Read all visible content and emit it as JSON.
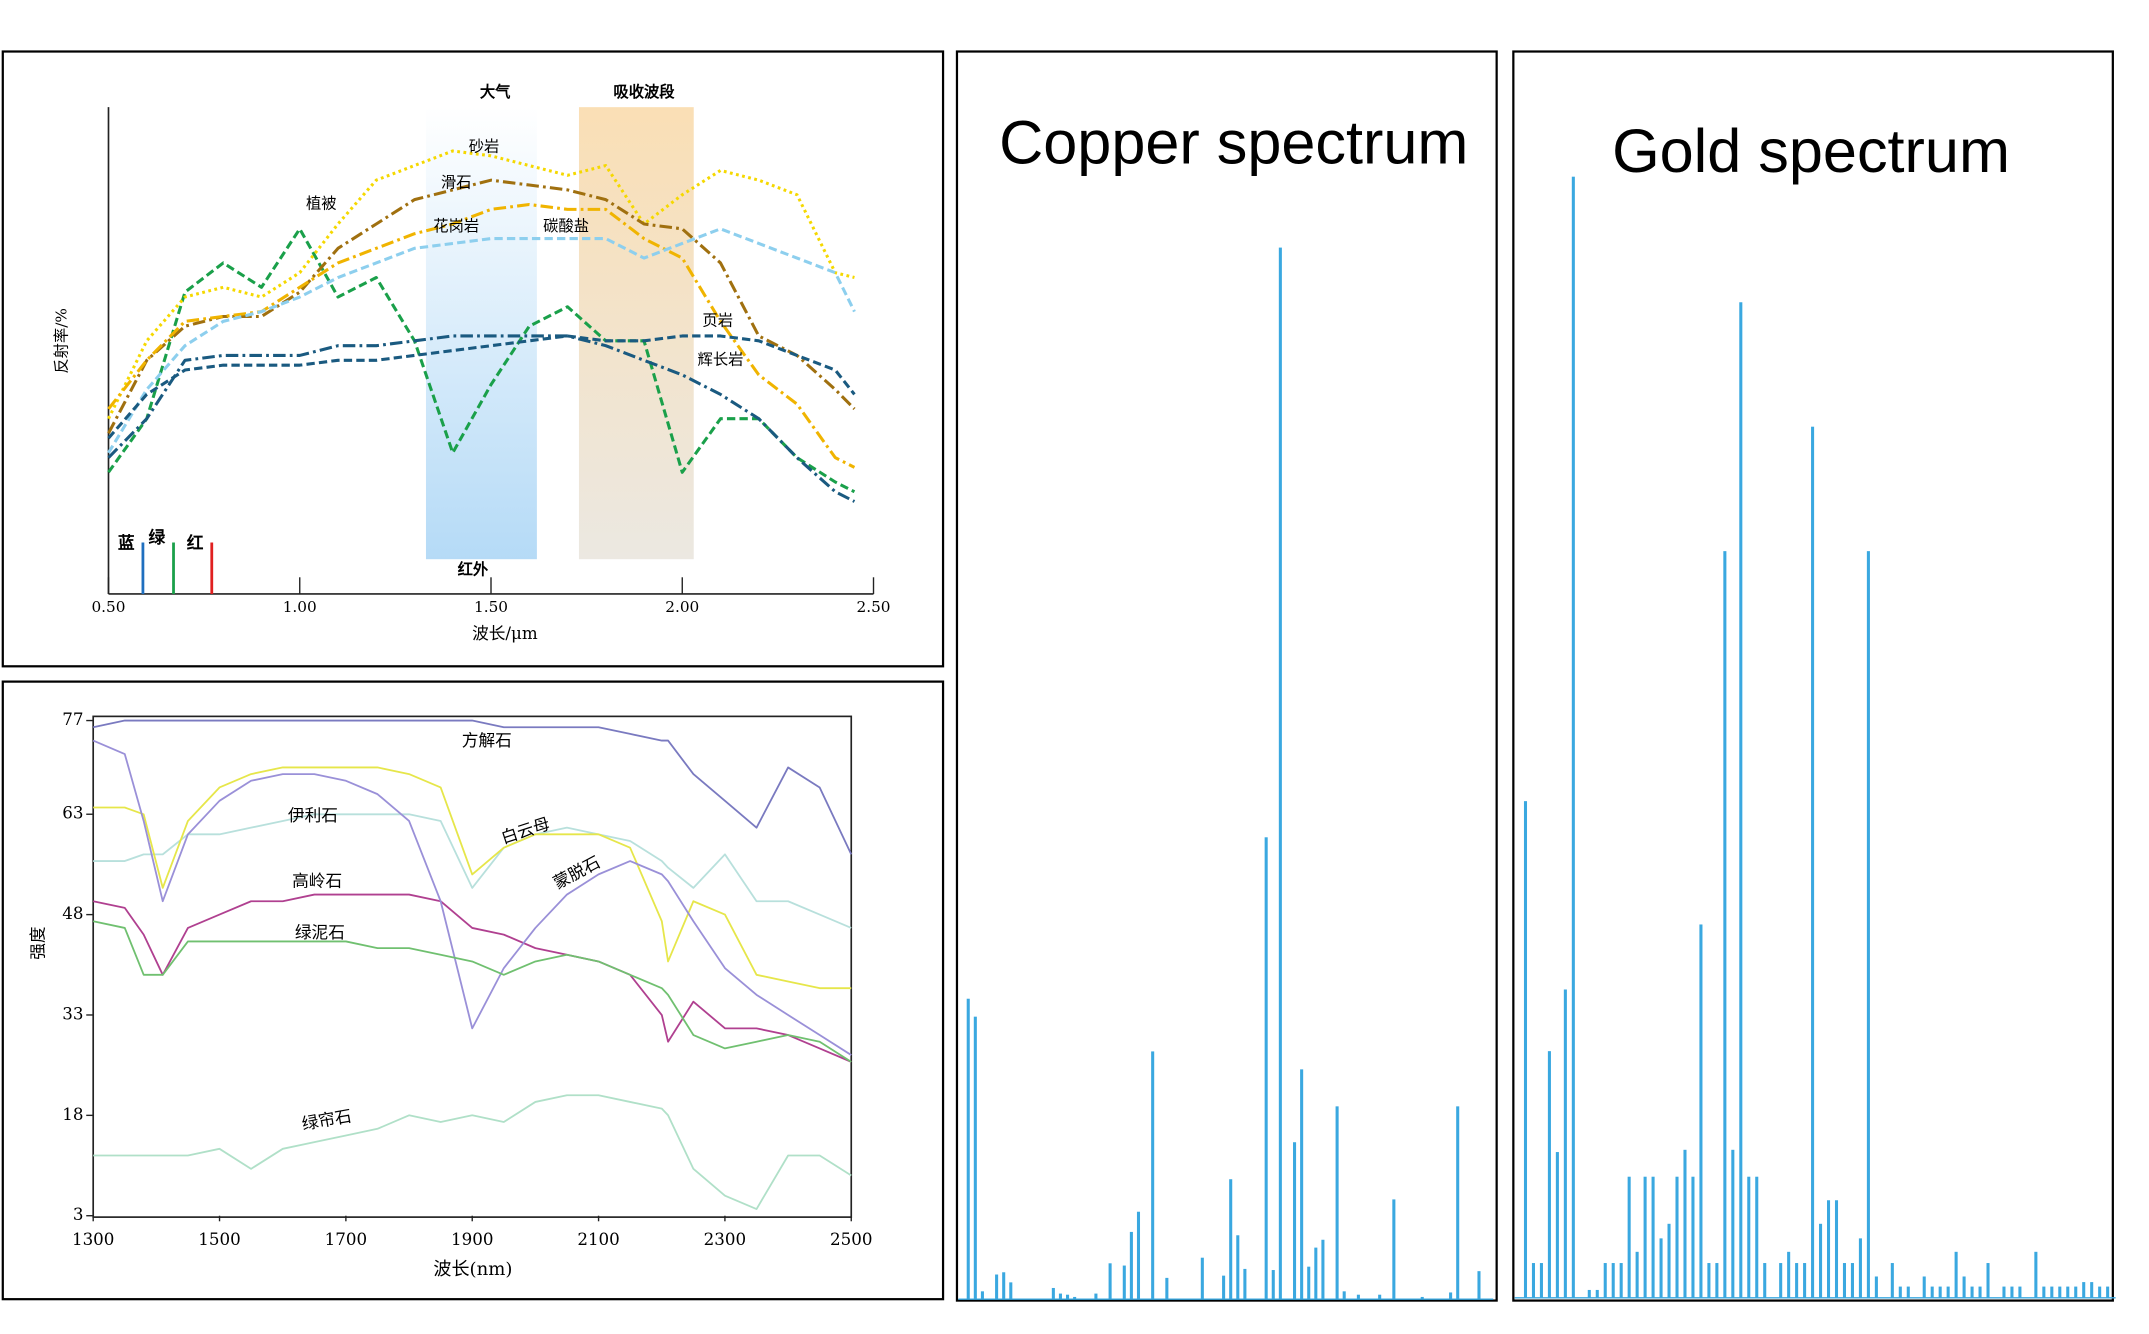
{
  "chart_data": [
    {
      "type": "line",
      "xlabel": "波长/μm",
      "ylabel": "反射率/%",
      "x": [
        0.5,
        0.6,
        0.7,
        0.8,
        0.9,
        1.0,
        1.1,
        1.2,
        1.3,
        1.4,
        1.5,
        1.6,
        1.7,
        1.8,
        1.9,
        2.0,
        2.1,
        2.2,
        2.3,
        2.4,
        2.45
      ],
      "xlim": [
        0.5,
        2.5
      ],
      "ylim": [
        0,
        100
      ],
      "xticks": [
        {
          "value": 0.5,
          "label": "0.50"
        },
        {
          "value": 1.0,
          "label": "1.00"
        },
        {
          "value": 1.5,
          "label": "1.50"
        },
        {
          "value": 2.0,
          "label": "2.00"
        },
        {
          "value": 2.5,
          "label": "2.50"
        }
      ],
      "bands": [
        [
          1.33,
          1.62
        ],
        [
          1.73,
          2.03
        ]
      ],
      "band_colors": [
        "#bfe0f7",
        "#f7dcae"
      ],
      "annotations": [
        "大气",
        "吸收波段",
        "红外"
      ],
      "markers": [
        {
          "label": "蓝",
          "x": 0.59,
          "color": "#1f6fbf"
        },
        {
          "label": "绿",
          "x": 0.67,
          "color": "#1aa04a"
        },
        {
          "label": "红",
          "x": 0.77,
          "color": "#e02020"
        }
      ],
      "series": [
        {
          "name": "植被",
          "color": "#1aa04a",
          "dash": "dashed",
          "values": [
            25,
            36,
            62,
            68,
            63,
            75,
            61,
            65,
            52,
            29,
            43,
            55,
            59,
            52,
            52,
            25,
            36,
            36,
            28,
            23,
            21
          ]
        },
        {
          "name": "砂岩",
          "color": "#f5d800",
          "dash": "dotted",
          "values": [
            36,
            52,
            61,
            63,
            61,
            66,
            76,
            85,
            88,
            91,
            90,
            88,
            86,
            88,
            76,
            82,
            87,
            85,
            82,
            66,
            65
          ]
        },
        {
          "name": "滑石",
          "color": "#a0700f",
          "dash": "dashdot",
          "values": [
            33,
            48,
            55,
            57,
            57,
            62,
            71,
            76,
            81,
            83,
            85,
            84,
            83,
            81,
            76,
            75,
            68,
            53,
            49,
            42,
            38
          ]
        },
        {
          "name": "花岗岩",
          "color": "#f0b400",
          "dash": "dashdot",
          "values": [
            38,
            48,
            56,
            57,
            58,
            63,
            68,
            71,
            74,
            76,
            79,
            80,
            79,
            79,
            73,
            69,
            56,
            45,
            39,
            28,
            26
          ]
        },
        {
          "name": "碳酸盐",
          "color": "#8dcfee",
          "dash": "dashed",
          "values": [
            29,
            42,
            51,
            56,
            58,
            61,
            65,
            68,
            71,
            72,
            73,
            73,
            73,
            73,
            69,
            72,
            75,
            72,
            69,
            66,
            58
          ]
        },
        {
          "name": "页岩",
          "color": "#1a5a80",
          "dash": "dashed",
          "values": [
            32,
            41,
            46,
            47,
            47,
            47,
            48,
            48,
            49,
            50,
            51,
            52,
            53,
            52,
            52,
            53,
            53,
            52,
            49,
            46,
            41
          ]
        },
        {
          "name": "辉长岩",
          "color": "#1a5a80",
          "dash": "dashdot",
          "values": [
            28,
            36,
            48,
            49,
            49,
            49,
            51,
            51,
            52,
            53,
            53,
            53,
            53,
            51,
            48,
            45,
            41,
            36,
            28,
            21,
            19
          ]
        }
      ]
    },
    {
      "type": "line",
      "xlabel": "波长(nm)",
      "ylabel": "强度",
      "x": [
        1300,
        1350,
        1380,
        1410,
        1450,
        1500,
        1550,
        1600,
        1650,
        1700,
        1750,
        1800,
        1850,
        1900,
        1950,
        2000,
        2050,
        2100,
        2150,
        2200,
        2210,
        2250,
        2300,
        2350,
        2400,
        2450,
        2500
      ],
      "xlim": [
        1300,
        2500
      ],
      "ylim": [
        3,
        77
      ],
      "xticks": [
        1300,
        1500,
        1700,
        1900,
        2100,
        2300,
        2500
      ],
      "yticks": [
        3,
        18,
        33,
        48,
        63,
        77
      ],
      "series": [
        {
          "name": "方解石",
          "color": "#7a7ac0",
          "dash": "solid",
          "values": [
            76,
            77,
            77,
            77,
            77,
            77,
            77,
            77,
            77,
            77,
            77,
            77,
            77,
            77,
            76,
            76,
            76,
            76,
            75,
            74,
            74,
            69,
            65,
            61,
            70,
            67,
            57
          ]
        },
        {
          "name": "伊利石",
          "color": "#b8e0dc",
          "dash": "solid",
          "values": [
            56,
            56,
            57,
            57,
            60,
            60,
            61,
            62,
            63,
            63,
            63,
            63,
            62,
            52,
            58,
            60,
            61,
            60,
            59,
            56,
            55,
            52,
            57,
            50,
            50,
            48,
            46
          ]
        },
        {
          "name": "白云母",
          "color": "#e6e64a",
          "dash": "solid",
          "values": [
            64,
            64,
            63,
            52,
            62,
            67,
            69,
            70,
            70,
            70,
            70,
            69,
            67,
            54,
            58,
            60,
            60,
            60,
            58,
            47,
            41,
            50,
            48,
            39,
            38,
            37,
            37
          ]
        },
        {
          "name": "高岭石",
          "color": "#b04090",
          "dash": "solid",
          "values": [
            50,
            49,
            45,
            39,
            46,
            48,
            50,
            50,
            51,
            51,
            51,
            51,
            50,
            46,
            45,
            43,
            42,
            41,
            39,
            33,
            29,
            35,
            31,
            31,
            30,
            28,
            26
          ]
        },
        {
          "name": "蒙脱石",
          "color": "#9a90d8",
          "dash": "solid",
          "values": [
            74,
            72,
            62,
            50,
            60,
            65,
            68,
            69,
            69,
            68,
            66,
            62,
            50,
            31,
            40,
            46,
            51,
            54,
            56,
            54,
            53,
            47,
            40,
            36,
            33,
            30,
            27
          ]
        },
        {
          "name": "绿泥石",
          "color": "#70c070",
          "dash": "solid",
          "values": [
            47,
            46,
            39,
            39,
            44,
            44,
            44,
            44,
            44,
            44,
            43,
            43,
            42,
            41,
            39,
            41,
            42,
            41,
            39,
            37,
            36,
            30,
            28,
            29,
            30,
            29,
            26
          ]
        },
        {
          "name": "绿帘石",
          "color": "#b0e0c8",
          "dash": "solid",
          "values": [
            12,
            12,
            12,
            12,
            12,
            13,
            10,
            13,
            14,
            15,
            16,
            18,
            17,
            18,
            17,
            20,
            21,
            21,
            20,
            19,
            18,
            10,
            6,
            4,
            12,
            12,
            9
          ]
        }
      ]
    },
    {
      "type": "bar",
      "title": "Copper spectrum",
      "color": "#3aa8e0",
      "xlim": [
        0,
        75
      ],
      "ylim": [
        0,
        100
      ],
      "x": [
        1,
        2,
        3,
        5,
        6,
        7,
        13,
        14,
        15,
        16,
        19,
        21,
        23,
        24,
        25,
        27,
        29,
        34,
        37,
        38,
        39,
        40,
        43,
        44,
        45,
        47,
        48,
        49,
        50,
        51,
        53,
        54,
        56,
        59,
        61,
        65,
        69,
        70,
        73
      ],
      "values": [
        26.8,
        25.2,
        0.7,
        2.2,
        2.4,
        1.5,
        1.0,
        0.5,
        0.4,
        0.2,
        0.5,
        3.2,
        3.0,
        6.0,
        7.8,
        22.1,
        1.9,
        3.7,
        2.1,
        10.7,
        5.7,
        2.7,
        41.2,
        2.6,
        93.8,
        14.0,
        20.5,
        2.9,
        4.6,
        5.3,
        17.2,
        0.7,
        0.4,
        0.4,
        8.9,
        0.2,
        0.6,
        17.2,
        2.5
      ]
    },
    {
      "type": "bar",
      "title": "Gold spectrum",
      "color": "#3aa8e0",
      "xlim": [
        0,
        75
      ],
      "ylim": [
        0,
        100
      ],
      "x": [
        1,
        2,
        3,
        4,
        5,
        6,
        7,
        9,
        10,
        11,
        12,
        13,
        14,
        15,
        16,
        17,
        18,
        19,
        20,
        21,
        22,
        23,
        24,
        25,
        26,
        27,
        28,
        29,
        30,
        31,
        33,
        34,
        35,
        36,
        37,
        38,
        39,
        40,
        41,
        42,
        43,
        44,
        45,
        47,
        48,
        49,
        51,
        52,
        53,
        54,
        55,
        56,
        57,
        58,
        59,
        61,
        62,
        63,
        65,
        66,
        67,
        68,
        69,
        70,
        71,
        72,
        73,
        74
      ],
      "values": [
        44.3,
        3.1,
        3.1,
        22.0,
        13.0,
        27.5,
        100,
        0.7,
        0.7,
        3.1,
        3.1,
        3.1,
        10.8,
        4.1,
        10.8,
        10.8,
        5.3,
        6.6,
        10.8,
        13.2,
        10.8,
        33.3,
        3.1,
        3.1,
        66.6,
        13.2,
        88.8,
        10.8,
        10.8,
        3.1,
        3.1,
        4.1,
        3.1,
        3.1,
        77.7,
        6.6,
        8.7,
        8.7,
        3.1,
        3.1,
        5.3,
        66.6,
        1.9,
        3.1,
        1.0,
        1.0,
        1.9,
        1.0,
        1.0,
        1.0,
        4.1,
        1.9,
        1.0,
        1.0,
        3.1,
        1.0,
        1.0,
        1.0,
        4.1,
        1.0,
        1.0,
        1.0,
        1.0,
        1.0,
        1.4,
        1.4,
        1.0,
        1.0
      ]
    }
  ]
}
